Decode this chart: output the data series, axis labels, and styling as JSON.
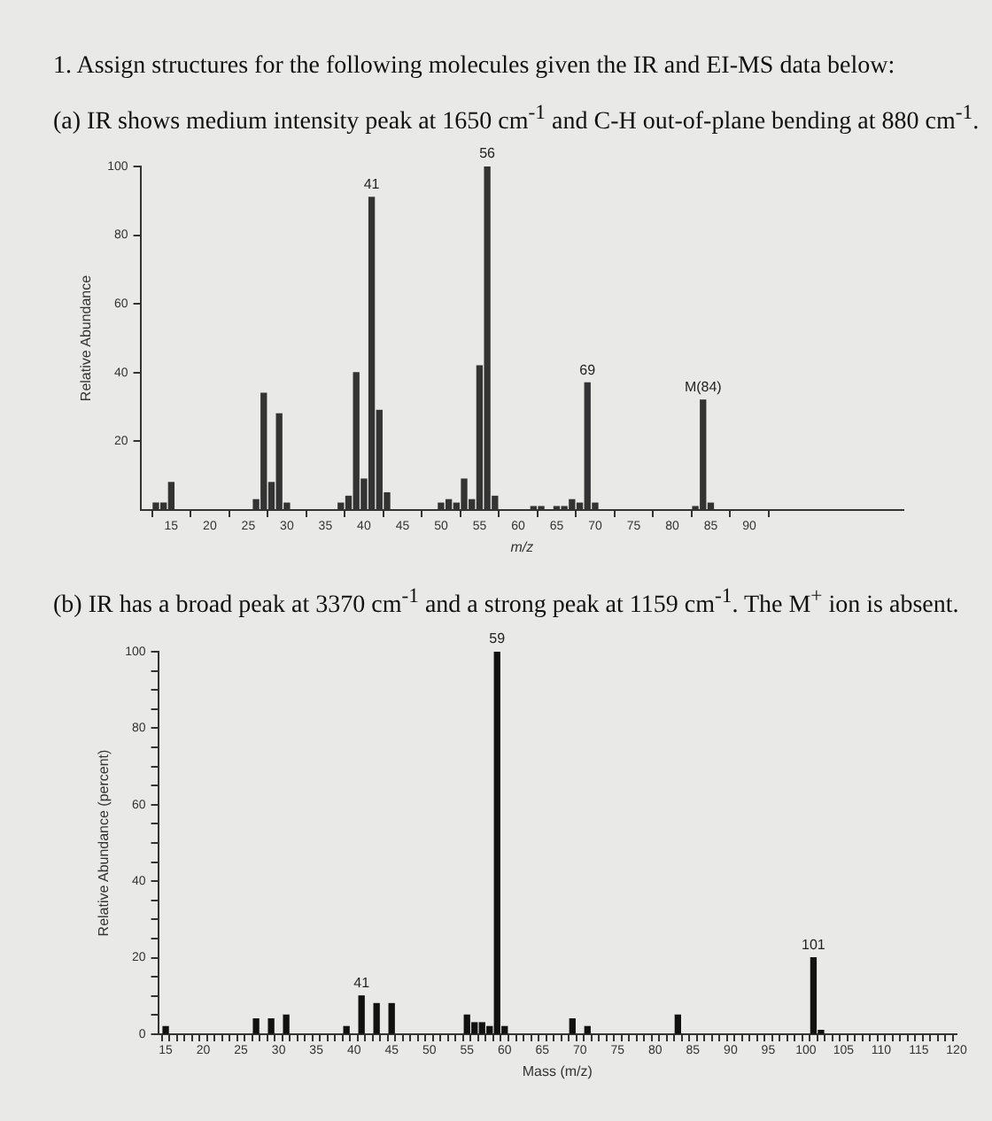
{
  "chart_data": [
    {
      "type": "bar",
      "title": "1. Assign structures for the following molecules given the IR and EI-MS data below:",
      "subtitle": "(a) IR shows medium intensity peak at 1650 cm$^{-1}$ and C-H out-of-plane bending at 880 cm$^{-1}$.",
      "xlabel": "m/z",
      "ylabel": "Relative Abundance",
      "x": [
        13,
        14,
        15,
        26,
        27,
        28,
        29,
        30,
        37,
        38,
        39,
        40,
        41,
        42,
        43,
        50,
        51,
        52,
        53,
        54,
        55,
        56,
        57,
        62,
        63,
        65,
        66,
        67,
        68,
        69,
        70,
        83,
        84,
        85
      ],
      "values": [
        2,
        2,
        8,
        3,
        34,
        8,
        28,
        2,
        2,
        4,
        40,
        9,
        91,
        29,
        5,
        2,
        3,
        2,
        9,
        3,
        42,
        100,
        4,
        1,
        1,
        1,
        1,
        3,
        2,
        37,
        2,
        1,
        32,
        2
      ],
      "color": "#333333",
      "xlim": [
        11,
        110
      ],
      "xticks": [
        15,
        20,
        25,
        30,
        35,
        40,
        45,
        50,
        55,
        60,
        65,
        70,
        75,
        80,
        85,
        90
      ],
      "ylim": [
        0,
        100
      ],
      "yticks": [
        20,
        40,
        60,
        80,
        100
      ],
      "annotations": [
        {
          "text": "41",
          "x": 41,
          "y": 91
        },
        {
          "text": "56",
          "x": 56,
          "y": 100
        },
        {
          "text": "69",
          "x": 69,
          "y": 37
        },
        {
          "text": "M(84)",
          "x": 84,
          "y": 32
        }
      ]
    },
    {
      "type": "bar",
      "title": "(b) IR has a broad peak at 3370 cm$^{-1}$ and a strong peak at 1159 cm$^{-1}$. The M$^{+}$ ion is absent.",
      "xlabel": "Mass (m/z)",
      "ylabel": "Relative Abundance (percent)",
      "x": [
        15,
        27,
        29,
        31,
        39,
        41,
        43,
        45,
        55,
        56,
        57,
        58,
        59,
        60,
        69,
        71,
        83,
        101,
        102
      ],
      "values": [
        2,
        4,
        4,
        5,
        2,
        10,
        8,
        8,
        5,
        3,
        3,
        2,
        100,
        2,
        4,
        2,
        5,
        20,
        1
      ],
      "color": "#111111",
      "xlim": [
        14,
        120
      ],
      "xticks": [
        15,
        {
          "value": 16,
          "label": null
        },
        {
          "value": 17,
          "label": null
        },
        {
          "value": 18,
          "label": null
        },
        {
          "value": 19,
          "label": null
        },
        20,
        {
          "value": 21,
          "label": null
        },
        {
          "value": 22,
          "label": null
        },
        {
          "value": 23,
          "label": null
        },
        {
          "value": 24,
          "label": null
        },
        25,
        {
          "value": 26,
          "label": null
        },
        {
          "value": 27,
          "label": null
        },
        {
          "value": 28,
          "label": null
        },
        {
          "value": 29,
          "label": null
        },
        30,
        {
          "value": 31,
          "label": null
        },
        {
          "value": 32,
          "label": null
        },
        {
          "value": 33,
          "label": null
        },
        {
          "value": 34,
          "label": null
        },
        35,
        {
          "value": 36,
          "label": null
        },
        {
          "value": 37,
          "label": null
        },
        {
          "value": 38,
          "label": null
        },
        {
          "value": 39,
          "label": null
        },
        40,
        {
          "value": 41,
          "label": null
        },
        {
          "value": 42,
          "label": null
        },
        {
          "value": 43,
          "label": null
        },
        {
          "value": 44,
          "label": null
        },
        45,
        {
          "value": 46,
          "label": null
        },
        {
          "value": 47,
          "label": null
        },
        {
          "value": 48,
          "label": null
        },
        {
          "value": 49,
          "label": null
        },
        50,
        {
          "value": 51,
          "label": null
        },
        {
          "value": 52,
          "label": null
        },
        {
          "value": 53,
          "label": null
        },
        {
          "value": 54,
          "label": null
        },
        55,
        {
          "value": 56,
          "label": null
        },
        {
          "value": 57,
          "label": null
        },
        {
          "value": 58,
          "label": null
        },
        {
          "value": 59,
          "label": null
        },
        60,
        {
          "value": 61,
          "label": null
        },
        {
          "value": 62,
          "label": null
        },
        {
          "value": 63,
          "label": null
        },
        {
          "value": 64,
          "label": null
        },
        65,
        {
          "value": 66,
          "label": null
        },
        {
          "value": 67,
          "label": null
        },
        {
          "value": 68,
          "label": null
        },
        {
          "value": 69,
          "label": null
        },
        70,
        {
          "value": 71,
          "label": null
        },
        {
          "value": 72,
          "label": null
        },
        {
          "value": 73,
          "label": null
        },
        {
          "value": 74,
          "label": null
        },
        75,
        {
          "value": 76,
          "label": null
        },
        {
          "value": 77,
          "label": null
        },
        {
          "value": 78,
          "label": null
        },
        {
          "value": 79,
          "label": null
        },
        80,
        {
          "value": 81,
          "label": null
        },
        {
          "value": 82,
          "label": null
        },
        {
          "value": 83,
          "label": null
        },
        {
          "value": 84,
          "label": null
        },
        85,
        {
          "value": 86,
          "label": null
        },
        {
          "value": 87,
          "label": null
        },
        {
          "value": 88,
          "label": null
        },
        {
          "value": 89,
          "label": null
        },
        90,
        {
          "value": 91,
          "label": null
        },
        {
          "value": 92,
          "label": null
        },
        {
          "value": 93,
          "label": null
        },
        {
          "value": 94,
          "label": null
        },
        95,
        {
          "value": 96,
          "label": null
        },
        {
          "value": 97,
          "label": null
        },
        {
          "value": 98,
          "label": null
        },
        {
          "value": 99,
          "label": null
        },
        100,
        {
          "value": 101,
          "label": null
        },
        {
          "value": 102,
          "label": null
        },
        {
          "value": 103,
          "label": null
        },
        {
          "value": 104,
          "label": null
        },
        105,
        {
          "value": 106,
          "label": null
        },
        {
          "value": 107,
          "label": null
        },
        {
          "value": 108,
          "label": null
        },
        {
          "value": 109,
          "label": null
        },
        110,
        {
          "value": 111,
          "label": null
        },
        {
          "value": 112,
          "label": null
        },
        {
          "value": 113,
          "label": null
        },
        {
          "value": 114,
          "label": null
        },
        115,
        {
          "value": 116,
          "label": null
        },
        {
          "value": 117,
          "label": null
        },
        {
          "value": 118,
          "label": null
        },
        {
          "value": 119,
          "label": null
        },
        120
      ],
      "ylim": [
        0,
        100
      ],
      "yticks": [
        0,
        {
          "value": 5,
          "label": null
        },
        {
          "value": 10,
          "label": null
        },
        {
          "value": 15,
          "label": null
        },
        20,
        {
          "value": 25,
          "label": null
        },
        {
          "value": 30,
          "label": null
        },
        {
          "value": 35,
          "label": null
        },
        40,
        {
          "value": 45,
          "label": null
        },
        {
          "value": 50,
          "label": null
        },
        {
          "value": 55,
          "label": null
        },
        60,
        {
          "value": 65,
          "label": null
        },
        {
          "value": 70,
          "label": null
        },
        {
          "value": 75,
          "label": null
        },
        80,
        {
          "value": 85,
          "label": null
        },
        {
          "value": 90,
          "label": null
        },
        {
          "value": 95,
          "label": null
        },
        100
      ],
      "annotations": [
        {
          "text": "41",
          "x": 41,
          "y": 10
        },
        {
          "text": "59",
          "x": 59,
          "y": 100
        },
        {
          "text": "101",
          "x": 101,
          "y": 20
        }
      ]
    }
  ]
}
